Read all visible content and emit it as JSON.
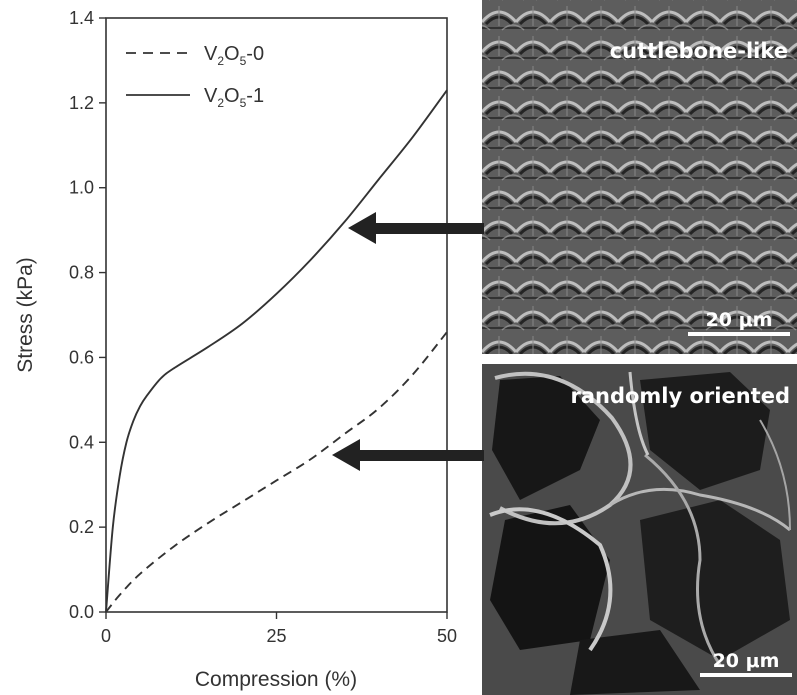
{
  "chart_data": {
    "type": "line",
    "xlabel": "Compression (%)",
    "ylabel": "Stress (kPa)",
    "xlim": [
      0,
      50
    ],
    "ylim": [
      0,
      1.4
    ],
    "xticks": [
      "0",
      "25",
      "50"
    ],
    "yticks": [
      "0.0",
      "0.2",
      "0.4",
      "0.6",
      "0.8",
      "1.0",
      "1.2",
      "1.4"
    ],
    "xtick_values": [
      0,
      25,
      50
    ],
    "ytick_values": [
      0,
      0.2,
      0.4,
      0.6,
      0.8,
      1.0,
      1.2,
      1.4
    ],
    "grid": false,
    "legend_position": "top-left",
    "series": [
      {
        "name": "V2O5-0",
        "name_parts": {
          "base": "V",
          "sub1": "2",
          "mid": "O",
          "sub2": "5",
          "suffix": "-0"
        },
        "style": "dashed",
        "color": "#333333",
        "x": [
          0,
          2,
          5,
          10,
          15,
          20,
          25,
          30,
          35,
          40,
          45,
          50
        ],
        "y": [
          0,
          0.04,
          0.09,
          0.155,
          0.21,
          0.26,
          0.31,
          0.36,
          0.42,
          0.48,
          0.56,
          0.66
        ]
      },
      {
        "name": "V2O5-1",
        "name_parts": {
          "base": "V",
          "sub1": "2",
          "mid": "O",
          "sub2": "5",
          "suffix": "-1"
        },
        "style": "solid",
        "color": "#333333",
        "x": [
          0,
          1,
          2,
          3,
          4,
          5,
          6,
          8,
          10,
          15,
          20,
          25,
          30,
          35,
          40,
          45,
          50
        ],
        "y": [
          0,
          0.2,
          0.32,
          0.4,
          0.45,
          0.485,
          0.51,
          0.55,
          0.575,
          0.625,
          0.68,
          0.75,
          0.83,
          0.92,
          1.02,
          1.12,
          1.23
        ]
      }
    ]
  },
  "images": {
    "top": {
      "label": "cuttlebone-like",
      "scale_bar": "20 μm"
    },
    "bottom": {
      "label": "randomly oriented",
      "scale_bar": "20 μm"
    }
  },
  "colors": {
    "line": "#333333",
    "arrow": "#222222",
    "panel_text": "#ffffff"
  }
}
